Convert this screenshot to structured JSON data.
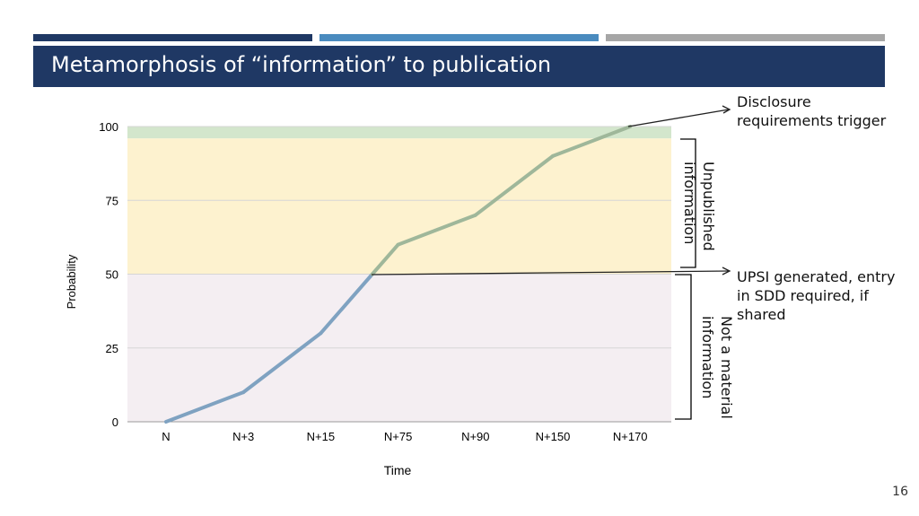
{
  "slide": {
    "title": "Metamorphosis of “information” to publication",
    "page_number": "16",
    "colors": {
      "navy": "#1f3864",
      "blue": "#4a8bbf",
      "gray": "#a6a6a6"
    }
  },
  "chart_data": {
    "type": "line",
    "categories": [
      "N",
      "N+3",
      "N+15",
      "N+75",
      "N+90",
      "N+150",
      "N+170"
    ],
    "values": [
      0,
      10,
      30,
      60,
      70,
      90,
      100
    ],
    "xlabel": "Time",
    "ylabel": "Probability",
    "ylim": [
      0,
      100
    ],
    "yticks": [
      "0",
      "25",
      "50",
      "75",
      "100"
    ],
    "grid": true,
    "bands": [
      {
        "from": 0,
        "to": 50,
        "color": "#f4eef2"
      },
      {
        "from": 50,
        "to": 96,
        "color": "#fdf2cf"
      },
      {
        "from": 96,
        "to": 100,
        "color": "#d3e6cc"
      }
    ],
    "line_colors": {
      "lower": "#7fa2c1",
      "upper": "#9fb79a"
    }
  },
  "annotations": {
    "disclosure": "Disclosure requirements trigger",
    "upsi": "UPSI generated, entry in SDD required, if shared",
    "unpublished": "Unpublished information",
    "not_material": "Not a material information"
  }
}
